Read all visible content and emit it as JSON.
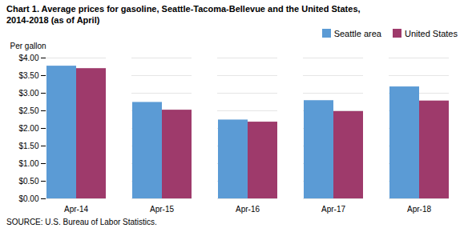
{
  "chart_data": {
    "type": "bar",
    "title": "Chart 1. Average prices for gasoline, Seattle-Tacoma-Bellevue and the United States,\n2014-2018  (as of April)",
    "ylabel": "Per gallon",
    "source": "SOURCE: U.S. Bureau of Labor Statistics.",
    "categories": [
      "Apr-14",
      "Apr-15",
      "Apr-16",
      "Apr-17",
      "Apr-18"
    ],
    "series": [
      {
        "name": "Seattle area",
        "color": "#5B9BD5",
        "values": [
          3.77,
          2.74,
          2.24,
          2.79,
          3.18
        ]
      },
      {
        "name": "United States",
        "color": "#9E3A6B",
        "values": [
          3.7,
          2.52,
          2.18,
          2.48,
          2.78
        ]
      }
    ],
    "ylim": [
      0,
      4.0
    ],
    "yticks": [
      {
        "value": 0.0,
        "label": "$0.00"
      },
      {
        "value": 0.5,
        "label": "$0.50"
      },
      {
        "value": 1.0,
        "label": "$1.00"
      },
      {
        "value": 1.5,
        "label": "$1.50"
      },
      {
        "value": 2.0,
        "label": "$2.00"
      },
      {
        "value": 2.5,
        "label": "$2.50"
      },
      {
        "value": 3.0,
        "label": "$3.00"
      },
      {
        "value": 3.5,
        "label": "$3.50"
      },
      {
        "value": 4.0,
        "label": "$4.00"
      }
    ],
    "grid": true,
    "legend": "upper right"
  }
}
